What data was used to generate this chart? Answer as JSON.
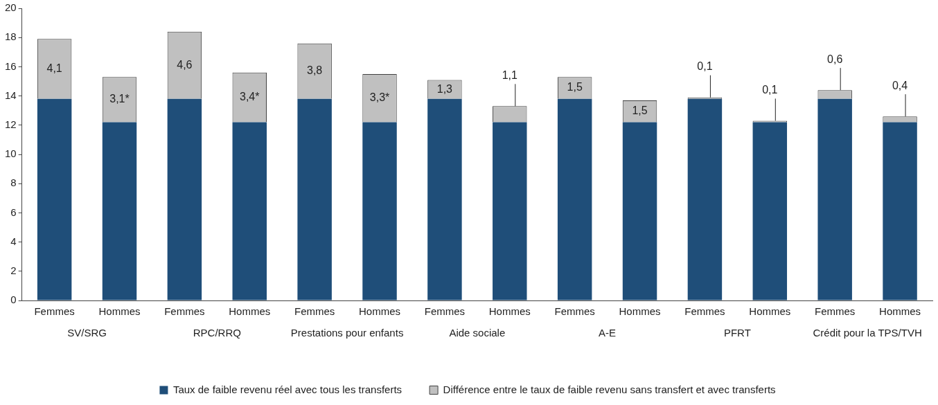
{
  "chart_data": {
    "type": "bar",
    "stacked": true,
    "categories": [
      "Femmes",
      "Hommes",
      "Femmes",
      "Hommes",
      "Femmes",
      "Hommes",
      "Femmes",
      "Hommes",
      "Femmes",
      "Hommes",
      "Femmes",
      "Hommes",
      "Femmes",
      "Hommes"
    ],
    "series": [
      {
        "name": "Taux de faible revenu réel avec tous les transferts",
        "color": "#1f4e79",
        "values": [
          13.8,
          12.2,
          13.8,
          12.2,
          13.8,
          12.2,
          13.8,
          12.2,
          13.8,
          12.2,
          13.8,
          12.2,
          13.8,
          12.2
        ]
      },
      {
        "name": "Différence entre le taux de faible revenu sans transfert et avec transferts",
        "color": "#c0c0c0",
        "values": [
          4.1,
          3.1,
          4.6,
          3.4,
          3.8,
          3.3,
          1.3,
          1.1,
          1.5,
          1.5,
          0.1,
          0.1,
          0.6,
          0.4
        ],
        "value_labels": [
          "4,1",
          "3,1*",
          "4,6",
          "3,4*",
          "3,8",
          "3,3*",
          "1,3",
          "1,1",
          "1,5",
          "1,5",
          "0,1",
          "0,1",
          "0,6",
          "0,4"
        ]
      }
    ],
    "annotations": [
      "SV/SRG",
      "RPC/RRQ",
      "Prestations pour enfants",
      "Aide sociale",
      "A-E",
      "PFRT",
      "Crédit pour la TPS/TVH"
    ],
    "ylim": [
      0,
      20
    ],
    "yticks": [
      0,
      2,
      4,
      6,
      8,
      10,
      12,
      14,
      16,
      18,
      20
    ],
    "grid": false,
    "legend": "bottom"
  }
}
